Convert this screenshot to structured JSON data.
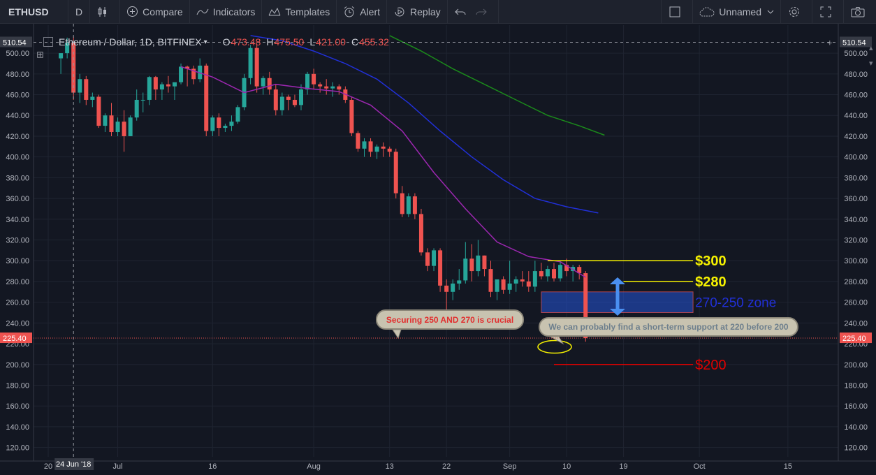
{
  "toolbar": {
    "symbol": "ETHUSD",
    "interval": "D",
    "compare": "Compare",
    "indicators": "Indicators",
    "templates": "Templates",
    "alert": "Alert",
    "replay": "Replay",
    "layout_name": "Unnamed"
  },
  "legend": {
    "title": "Ethereum / Dollar, 1D, BITFINEX",
    "open_key": "O",
    "open": "473.48",
    "high_key": "H",
    "high": "475.50",
    "low_key": "L",
    "low": "421.00",
    "close_key": "C",
    "close": "455.32"
  },
  "colors": {
    "background": "#131722",
    "up": "#26a69a",
    "down": "#ef5350",
    "ma_short": "#9c27b0",
    "ma_mid": "#2130d8",
    "ma_long": "#1b8a1b",
    "level_yellow": "#f6f200",
    "level_red": "#e00000",
    "zone_blue": "#2962ff"
  },
  "chart_data": {
    "type": "candlestick",
    "title": "Ethereum / Dollar, 1D, BITFINEX",
    "ylim": [
      111,
      527
    ],
    "y_ticks": [
      "120.00",
      "140.00",
      "160.00",
      "180.00",
      "200.00",
      "220.00",
      "240.00",
      "260.00",
      "280.00",
      "300.00",
      "320.00",
      "340.00",
      "360.00",
      "380.00",
      "400.00",
      "420.00",
      "440.00",
      "460.00",
      "480.00",
      "500.00"
    ],
    "x_tick_labels": [
      "20",
      "Jul",
      "16",
      "Aug",
      "13",
      "22",
      "Sep",
      "10",
      "19",
      "Oct",
      "15"
    ],
    "crosshair_date_label": "24 Jun '18",
    "crosshair_price_label": "510.54",
    "last_price_label": "225.40",
    "last_price": 225.4,
    "candles": [
      {
        "date": "2018-06-22",
        "o": 495,
        "h": 500,
        "l": 480,
        "c": 500
      },
      {
        "date": "2018-06-23",
        "o": 500,
        "h": 515,
        "l": 495,
        "c": 510
      },
      {
        "date": "2018-06-24",
        "o": 510,
        "h": 516,
        "l": 455,
        "c": 462
      },
      {
        "date": "2018-06-25",
        "o": 462,
        "h": 480,
        "l": 452,
        "c": 475
      },
      {
        "date": "2018-06-26",
        "o": 475,
        "h": 478,
        "l": 450,
        "c": 455
      },
      {
        "date": "2018-06-27",
        "o": 455,
        "h": 462,
        "l": 448,
        "c": 458
      },
      {
        "date": "2018-06-28",
        "o": 458,
        "h": 460,
        "l": 428,
        "c": 430
      },
      {
        "date": "2018-06-29",
        "o": 430,
        "h": 442,
        "l": 424,
        "c": 440
      },
      {
        "date": "2018-06-30",
        "o": 440,
        "h": 452,
        "l": 420,
        "c": 424
      },
      {
        "date": "2018-07-01",
        "o": 424,
        "h": 438,
        "l": 420,
        "c": 434
      },
      {
        "date": "2018-07-02",
        "o": 434,
        "h": 445,
        "l": 405,
        "c": 420
      },
      {
        "date": "2018-07-03",
        "o": 420,
        "h": 440,
        "l": 420,
        "c": 438
      },
      {
        "date": "2018-07-04",
        "o": 438,
        "h": 465,
        "l": 435,
        "c": 455
      },
      {
        "date": "2018-07-05",
        "o": 455,
        "h": 462,
        "l": 443,
        "c": 455
      },
      {
        "date": "2018-07-06",
        "o": 455,
        "h": 478,
        "l": 450,
        "c": 477
      },
      {
        "date": "2018-07-07",
        "o": 477,
        "h": 478,
        "l": 455,
        "c": 465
      },
      {
        "date": "2018-07-08",
        "o": 465,
        "h": 472,
        "l": 455,
        "c": 470
      },
      {
        "date": "2018-07-09",
        "o": 470,
        "h": 478,
        "l": 462,
        "c": 468
      },
      {
        "date": "2018-07-10",
        "o": 468,
        "h": 470,
        "l": 455,
        "c": 472
      },
      {
        "date": "2018-07-11",
        "o": 472,
        "h": 490,
        "l": 470,
        "c": 487
      },
      {
        "date": "2018-07-12",
        "o": 487,
        "h": 488,
        "l": 468,
        "c": 485
      },
      {
        "date": "2018-07-13",
        "o": 485,
        "h": 488,
        "l": 470,
        "c": 475
      },
      {
        "date": "2018-07-14",
        "o": 475,
        "h": 495,
        "l": 472,
        "c": 488
      },
      {
        "date": "2018-07-15",
        "o": 488,
        "h": 490,
        "l": 420,
        "c": 425
      },
      {
        "date": "2018-07-16",
        "o": 425,
        "h": 440,
        "l": 420,
        "c": 438
      },
      {
        "date": "2018-07-17",
        "o": 438,
        "h": 442,
        "l": 420,
        "c": 428
      },
      {
        "date": "2018-07-18",
        "o": 428,
        "h": 432,
        "l": 424,
        "c": 430
      },
      {
        "date": "2018-07-19",
        "o": 430,
        "h": 440,
        "l": 425,
        "c": 434
      },
      {
        "date": "2018-07-20",
        "o": 434,
        "h": 450,
        "l": 432,
        "c": 448
      },
      {
        "date": "2018-07-21",
        "o": 448,
        "h": 480,
        "l": 445,
        "c": 476
      },
      {
        "date": "2018-07-22",
        "o": 476,
        "h": 508,
        "l": 470,
        "c": 505
      },
      {
        "date": "2018-07-23",
        "o": 505,
        "h": 508,
        "l": 462,
        "c": 468
      },
      {
        "date": "2018-07-24",
        "o": 468,
        "h": 478,
        "l": 460,
        "c": 476
      },
      {
        "date": "2018-07-25",
        "o": 476,
        "h": 482,
        "l": 460,
        "c": 465
      },
      {
        "date": "2018-07-26",
        "o": 465,
        "h": 470,
        "l": 440,
        "c": 445
      },
      {
        "date": "2018-07-27",
        "o": 445,
        "h": 462,
        "l": 440,
        "c": 458
      },
      {
        "date": "2018-07-28",
        "o": 458,
        "h": 460,
        "l": 445,
        "c": 455
      },
      {
        "date": "2018-07-29",
        "o": 455,
        "h": 460,
        "l": 448,
        "c": 450
      },
      {
        "date": "2018-07-30",
        "o": 450,
        "h": 470,
        "l": 445,
        "c": 465
      },
      {
        "date": "2018-07-31",
        "o": 465,
        "h": 482,
        "l": 460,
        "c": 480
      },
      {
        "date": "2018-08-01",
        "o": 480,
        "h": 485,
        "l": 465,
        "c": 470
      },
      {
        "date": "2018-08-02",
        "o": 470,
        "h": 472,
        "l": 462,
        "c": 468
      },
      {
        "date": "2018-08-03",
        "o": 468,
        "h": 475,
        "l": 460,
        "c": 466
      },
      {
        "date": "2018-08-04",
        "o": 466,
        "h": 472,
        "l": 458,
        "c": 468
      },
      {
        "date": "2018-08-05",
        "o": 468,
        "h": 470,
        "l": 460,
        "c": 465
      },
      {
        "date": "2018-08-06",
        "o": 465,
        "h": 468,
        "l": 452,
        "c": 455
      },
      {
        "date": "2018-08-07",
        "o": 455,
        "h": 458,
        "l": 420,
        "c": 423
      },
      {
        "date": "2018-08-08",
        "o": 423,
        "h": 425,
        "l": 405,
        "c": 408
      },
      {
        "date": "2018-08-09",
        "o": 408,
        "h": 418,
        "l": 400,
        "c": 415
      },
      {
        "date": "2018-08-10",
        "o": 415,
        "h": 418,
        "l": 400,
        "c": 405
      },
      {
        "date": "2018-08-11",
        "o": 405,
        "h": 412,
        "l": 398,
        "c": 410
      },
      {
        "date": "2018-08-12",
        "o": 410,
        "h": 414,
        "l": 400,
        "c": 408
      },
      {
        "date": "2018-08-13",
        "o": 408,
        "h": 410,
        "l": 400,
        "c": 405
      },
      {
        "date": "2018-08-14",
        "o": 405,
        "h": 408,
        "l": 360,
        "c": 365
      },
      {
        "date": "2018-08-15",
        "o": 365,
        "h": 372,
        "l": 342,
        "c": 345
      },
      {
        "date": "2018-08-16",
        "o": 345,
        "h": 365,
        "l": 342,
        "c": 362
      },
      {
        "date": "2018-08-17",
        "o": 362,
        "h": 365,
        "l": 340,
        "c": 345
      },
      {
        "date": "2018-08-18",
        "o": 345,
        "h": 350,
        "l": 305,
        "c": 308
      },
      {
        "date": "2018-08-19",
        "o": 308,
        "h": 312,
        "l": 290,
        "c": 295
      },
      {
        "date": "2018-08-20",
        "o": 295,
        "h": 312,
        "l": 290,
        "c": 310
      },
      {
        "date": "2018-08-21",
        "o": 310,
        "h": 312,
        "l": 270,
        "c": 276
      },
      {
        "date": "2018-08-22",
        "o": 276,
        "h": 282,
        "l": 250,
        "c": 270
      },
      {
        "date": "2018-08-23",
        "o": 270,
        "h": 282,
        "l": 262,
        "c": 278
      },
      {
        "date": "2018-08-24",
        "o": 278,
        "h": 292,
        "l": 272,
        "c": 281
      },
      {
        "date": "2018-08-25",
        "o": 281,
        "h": 318,
        "l": 278,
        "c": 302
      },
      {
        "date": "2018-08-26",
        "o": 302,
        "h": 316,
        "l": 280,
        "c": 290
      },
      {
        "date": "2018-08-27",
        "o": 290,
        "h": 320,
        "l": 285,
        "c": 305
      },
      {
        "date": "2018-08-28",
        "o": 305,
        "h": 305,
        "l": 285,
        "c": 292
      },
      {
        "date": "2018-08-29",
        "o": 292,
        "h": 300,
        "l": 265,
        "c": 270
      },
      {
        "date": "2018-08-30",
        "o": 270,
        "h": 280,
        "l": 262,
        "c": 282
      },
      {
        "date": "2018-08-31",
        "o": 282,
        "h": 285,
        "l": 268,
        "c": 272
      },
      {
        "date": "2018-09-01",
        "o": 272,
        "h": 300,
        "l": 268,
        "c": 278
      },
      {
        "date": "2018-09-02",
        "o": 278,
        "h": 285,
        "l": 270,
        "c": 282
      },
      {
        "date": "2018-09-03",
        "o": 282,
        "h": 290,
        "l": 275,
        "c": 280
      },
      {
        "date": "2018-09-04",
        "o": 280,
        "h": 290,
        "l": 270,
        "c": 275
      },
      {
        "date": "2018-09-05",
        "o": 275,
        "h": 300,
        "l": 270,
        "c": 290
      },
      {
        "date": "2018-09-06",
        "o": 290,
        "h": 298,
        "l": 282,
        "c": 285
      },
      {
        "date": "2018-09-07",
        "o": 285,
        "h": 295,
        "l": 280,
        "c": 292
      },
      {
        "date": "2018-09-08",
        "o": 292,
        "h": 298,
        "l": 280,
        "c": 283
      },
      {
        "date": "2018-09-09",
        "o": 283,
        "h": 300,
        "l": 280,
        "c": 296
      },
      {
        "date": "2018-09-10",
        "o": 296,
        "h": 302,
        "l": 285,
        "c": 290
      },
      {
        "date": "2018-09-11",
        "o": 290,
        "h": 296,
        "l": 280,
        "c": 294
      },
      {
        "date": "2018-09-12",
        "o": 294,
        "h": 296,
        "l": 282,
        "c": 288
      },
      {
        "date": "2018-09-13",
        "o": 288,
        "h": 290,
        "l": 222,
        "c": 225.4
      }
    ],
    "moving_averages": [
      {
        "color": "#9c27b0",
        "points": [
          [
            "2018-07-11",
            487
          ],
          [
            "2018-07-16",
            477
          ],
          [
            "2018-07-21",
            462
          ],
          [
            "2018-07-26",
            470
          ],
          [
            "2018-07-31",
            466
          ],
          [
            "2018-08-05",
            463
          ],
          [
            "2018-08-10",
            450
          ],
          [
            "2018-08-15",
            425
          ],
          [
            "2018-08-20",
            385
          ],
          [
            "2018-08-25",
            350
          ],
          [
            "2018-08-30",
            318
          ],
          [
            "2018-09-04",
            304
          ],
          [
            "2018-09-09",
            299
          ],
          [
            "2018-09-13",
            284
          ]
        ]
      },
      {
        "color": "#2130d8",
        "points": [
          [
            "2018-07-22",
            517
          ],
          [
            "2018-07-27",
            512
          ],
          [
            "2018-08-01",
            502
          ],
          [
            "2018-08-06",
            490
          ],
          [
            "2018-08-11",
            475
          ],
          [
            "2018-08-16",
            452
          ],
          [
            "2018-08-21",
            425
          ],
          [
            "2018-08-26",
            400
          ],
          [
            "2018-08-31",
            378
          ],
          [
            "2018-09-05",
            360
          ],
          [
            "2018-09-10",
            352
          ],
          [
            "2018-09-15",
            346
          ]
        ]
      },
      {
        "color": "#1b8a1b",
        "points": [
          [
            "2018-08-13",
            517
          ],
          [
            "2018-08-18",
            502
          ],
          [
            "2018-08-23",
            485
          ],
          [
            "2018-08-28",
            470
          ],
          [
            "2018-09-02",
            455
          ],
          [
            "2018-09-07",
            440
          ],
          [
            "2018-09-12",
            430
          ],
          [
            "2018-09-16",
            421
          ]
        ]
      }
    ],
    "levels": [
      {
        "label": "$300",
        "price": 300,
        "from": "2018-09-07",
        "to": "2018-09-30",
        "color": "#f6f200"
      },
      {
        "label": "$280",
        "price": 280,
        "from": "2018-09-19",
        "to": "2018-09-30",
        "color": "#f6f200"
      },
      {
        "label": "$200",
        "price": 200,
        "from": "2018-09-08",
        "to": "2018-09-30",
        "color": "#e00000"
      }
    ],
    "zone": {
      "label": "270-250 zone",
      "top": 270,
      "bottom": 250,
      "from": "2018-09-06",
      "to": "2018-09-30"
    },
    "notes": [
      {
        "text": "Securing 250 AND 270 is crucial"
      },
      {
        "text": "We can probably find a short-term support at 220 before 200"
      }
    ]
  }
}
